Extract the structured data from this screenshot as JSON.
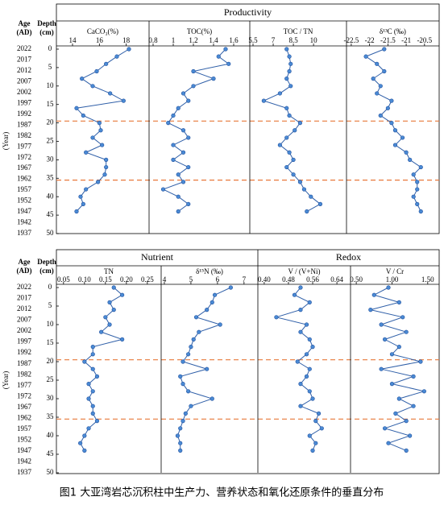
{
  "figure": {
    "caption": "图1 大亚湾岩芯沉积柱中生产力、营养状态和氧化还原条件的垂直分布",
    "age_label": "Age",
    "age_unit": "(AD)",
    "depth_label": "Depth",
    "depth_unit": "(cm)",
    "year_label": "(Year)",
    "age_ticks": [
      2022,
      2017,
      2012,
      2007,
      2002,
      1997,
      1992,
      1987,
      1982,
      1977,
      1972,
      1967,
      1962,
      1957,
      1952,
      1947,
      1942,
      1937
    ],
    "depth_ticks": [
      0,
      5,
      10,
      15,
      20,
      25,
      30,
      35,
      40,
      45,
      50
    ],
    "ylim": [
      0,
      50
    ],
    "boundaries": [
      19.5,
      35.5
    ],
    "groups": [
      {
        "title": "Productivity"
      },
      {
        "title": "Nutrient"
      },
      {
        "title": "Redox"
      }
    ]
  },
  "chart_data": [
    {
      "type": "line",
      "title": "CaCO₃(%)",
      "color": "#2f5fa8",
      "xlim": [
        12.8,
        19.7
      ],
      "xticks": [
        14,
        16,
        18
      ],
      "depth": [
        0,
        2,
        4,
        6,
        8,
        10,
        12,
        14,
        16,
        18,
        20,
        22,
        24,
        26,
        28,
        30,
        32,
        34,
        36,
        38,
        40,
        42,
        44
      ],
      "values": [
        18.2,
        17.3,
        16.5,
        15.8,
        14.7,
        15.5,
        16.8,
        17.8,
        14.3,
        14.8,
        16.0,
        16.1,
        15.5,
        16.2,
        15.0,
        16.5,
        16.5,
        16.4,
        15.9,
        15.0,
        14.6,
        14.8,
        14.3
      ]
    },
    {
      "type": "line",
      "title": "TOC(%)",
      "color": "#2f5fa8",
      "xlim": [
        0.76,
        1.76
      ],
      "xticks": [
        0.8,
        1.0,
        1.2,
        1.4,
        1.6
      ],
      "depth": [
        0,
        2,
        4,
        6,
        8,
        10,
        12,
        14,
        16,
        18,
        20,
        22,
        24,
        26,
        28,
        30,
        32,
        34,
        36,
        38,
        40,
        42,
        44
      ],
      "values": [
        1.52,
        1.45,
        1.55,
        1.2,
        1.4,
        1.2,
        1.1,
        1.15,
        1.05,
        1.0,
        0.95,
        1.1,
        1.15,
        1.0,
        1.1,
        1.0,
        1.15,
        1.05,
        1.1,
        0.9,
        1.05,
        1.15,
        1.05
      ]
    },
    {
      "type": "line",
      "title": "TOC / TN",
      "color": "#2f5fa8",
      "xlim": [
        5.26,
        12.45
      ],
      "xticks": [
        5.5,
        7.0,
        8.5,
        10.0
      ],
      "depth": [
        0,
        2,
        4,
        6,
        8,
        10,
        12,
        14,
        16,
        18,
        20,
        22,
        24,
        26,
        28,
        30,
        32,
        34,
        36,
        38,
        40,
        42,
        44
      ],
      "values": [
        8.0,
        8.2,
        8.3,
        8.2,
        8.0,
        8.3,
        7.5,
        6.3,
        8.0,
        8.2,
        9.0,
        8.6,
        8.0,
        7.5,
        8.2,
        8.5,
        8.0,
        8.5,
        9.0,
        9.3,
        9.8,
        10.5,
        9.5
      ]
    },
    {
      "type": "line",
      "title": "δ¹³C (‰)",
      "color": "#2f5fa8",
      "xlim": [
        -22.63,
        -20.1
      ],
      "xticks": [
        -22.5,
        -22,
        -21.5,
        -21,
        -20.5
      ],
      "depth": [
        0,
        2,
        4,
        6,
        8,
        10,
        12,
        14,
        16,
        18,
        20,
        22,
        24,
        26,
        28,
        30,
        32,
        34,
        36,
        38,
        40,
        42,
        44
      ],
      "values": [
        -21.6,
        -22.1,
        -21.8,
        -21.6,
        -21.9,
        -21.7,
        -21.8,
        -21.4,
        -21.5,
        -21.7,
        -21.4,
        -21.3,
        -21.1,
        -21.3,
        -21.0,
        -20.9,
        -20.6,
        -20.8,
        -20.7,
        -20.7,
        -20.8,
        -20.7,
        -20.6
      ]
    },
    {
      "type": "line",
      "title": "TN",
      "color": "#2f5fa8",
      "xlim": [
        0.033,
        0.283
      ],
      "xticks": [
        0.05,
        {
          "value": 0.1,
          "label": "0.10"
        },
        0.15,
        {
          "value": 0.2,
          "label": "0.20"
        },
        0.25
      ],
      "depth": [
        0,
        2,
        4,
        6,
        8,
        10,
        12,
        14,
        16,
        18,
        20,
        22,
        24,
        26,
        28,
        30,
        32,
        34,
        36,
        38,
        40,
        42,
        44
      ],
      "values": [
        0.17,
        0.19,
        0.16,
        0.17,
        0.15,
        0.16,
        0.14,
        0.19,
        0.12,
        0.12,
        0.1,
        0.12,
        0.13,
        0.11,
        0.12,
        0.11,
        0.12,
        0.12,
        0.13,
        0.11,
        0.1,
        0.09,
        0.1
      ]
    },
    {
      "type": "line",
      "title": "δ¹⁵N (‰)",
      "color": "#2f5fa8",
      "xlim": [
        3.88,
        7.52
      ],
      "xticks": [
        4,
        5,
        6,
        7
      ],
      "depth": [
        0,
        2,
        4,
        6,
        8,
        10,
        12,
        14,
        16,
        18,
        20,
        22,
        24,
        26,
        28,
        30,
        32,
        34,
        36,
        38,
        40,
        42,
        44
      ],
      "values": [
        6.5,
        5.9,
        5.8,
        5.6,
        5.2,
        6.1,
        5.3,
        5.1,
        5.0,
        4.9,
        4.7,
        5.6,
        4.6,
        4.7,
        4.9,
        5.8,
        5.0,
        4.8,
        4.7,
        4.6,
        4.5,
        4.6,
        4.6
      ]
    },
    {
      "type": "line",
      "title": "V / (V+Ni)",
      "color": "#2f5fa8",
      "xlim": [
        0.379,
        0.685
      ],
      "xticks": [
        {
          "value": 0.4,
          "label": "0.40"
        },
        0.48,
        0.56,
        0.64
      ],
      "depth": [
        0,
        2,
        4,
        6,
        8,
        10,
        12,
        14,
        16,
        18,
        20,
        22,
        24,
        26,
        28,
        30,
        32,
        34,
        36,
        38,
        40,
        42,
        44
      ],
      "values": [
        0.52,
        0.5,
        0.55,
        0.52,
        0.44,
        0.54,
        0.52,
        0.55,
        0.56,
        0.54,
        0.51,
        0.55,
        0.54,
        0.52,
        0.55,
        0.56,
        0.52,
        0.58,
        0.57,
        0.59,
        0.55,
        0.57,
        0.56
      ]
    },
    {
      "type": "line",
      "title": "V / Cr",
      "color": "#2f5fa8",
      "xlim": [
        0.42,
        1.66
      ],
      "xticks": [
        {
          "value": 0.5,
          "label": "0.50"
        },
        {
          "value": 1,
          "label": "1.00"
        },
        {
          "value": 1.5,
          "label": "1.50"
        }
      ],
      "depth": [
        0,
        2,
        4,
        6,
        8,
        10,
        12,
        14,
        16,
        18,
        20,
        22,
        24,
        26,
        28,
        30,
        32,
        34,
        36,
        38,
        40,
        42,
        44
      ],
      "values": [
        0.95,
        0.75,
        1.1,
        0.7,
        1.15,
        0.85,
        1.2,
        0.9,
        1.1,
        1.0,
        1.4,
        0.85,
        1.3,
        1.0,
        1.45,
        1.1,
        1.3,
        1.05,
        1.2,
        0.9,
        1.25,
        0.95,
        1.2
      ]
    }
  ]
}
